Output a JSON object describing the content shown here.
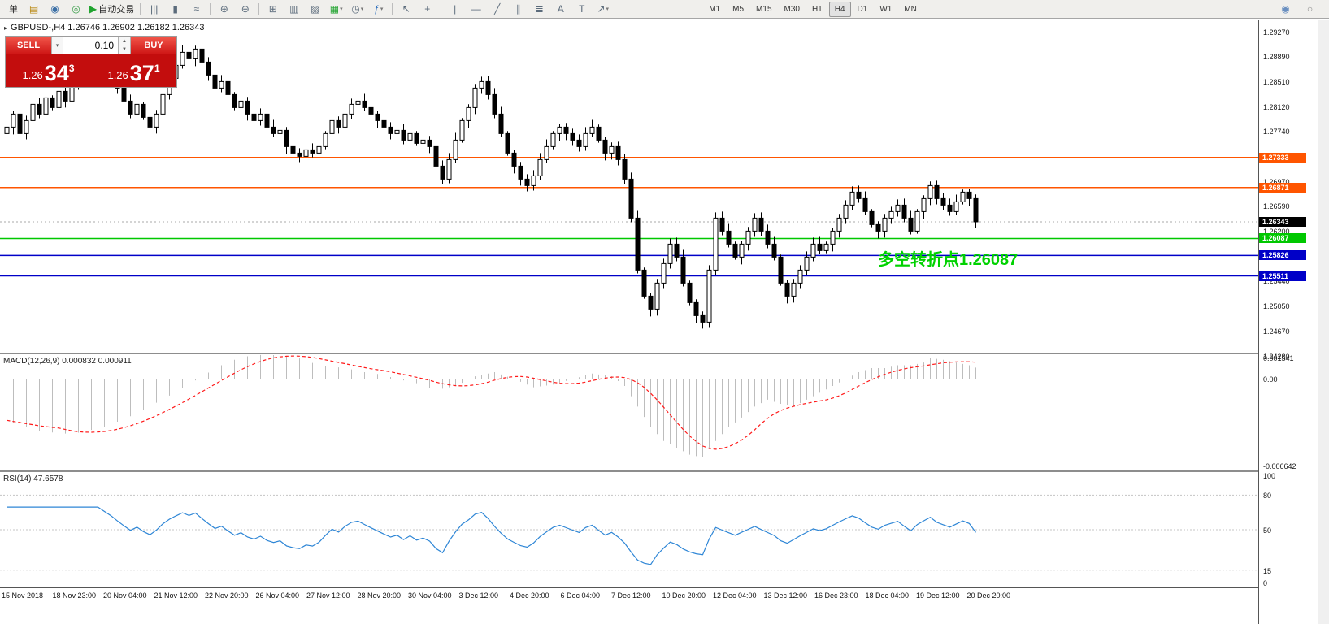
{
  "toolbar": {
    "items": [
      {
        "name": "order-button",
        "label": "单"
      },
      {
        "name": "chart-window-icon",
        "glyph": "▤",
        "color": "#b8860b"
      },
      {
        "name": "market-watch-icon",
        "glyph": "◉",
        "color": "#3a6ea5"
      },
      {
        "name": "navigator-icon",
        "glyph": "◎",
        "color": "#3a9e4a"
      },
      {
        "name": "autotrade-button",
        "label": "自动交易",
        "glyph": "▶",
        "color": "#1fa32e"
      },
      {
        "type": "sep"
      },
      {
        "name": "bar-chart-type-icon",
        "glyph": "|||"
      },
      {
        "name": "candlestick-chart-type-icon",
        "glyph": "▮"
      },
      {
        "name": "line-chart-type-icon",
        "glyph": "≈"
      },
      {
        "type": "sep"
      },
      {
        "name": "zoom-in-icon",
        "glyph": "⊕"
      },
      {
        "name": "zoom-out-icon",
        "glyph": "⊖"
      },
      {
        "type": "sep"
      },
      {
        "name": "tile-windows-icon",
        "glyph": "⊞"
      },
      {
        "name": "auto-arrange-icon",
        "glyph": "▥"
      },
      {
        "name": "chart-shift-icon",
        "glyph": "▨"
      },
      {
        "name": "new-chart-button",
        "glyph": "▦",
        "dd": true,
        "color": "#1fa32e"
      },
      {
        "name": "periodicity-icon",
        "glyph": "◷",
        "dd": true
      },
      {
        "name": "indicators-icon",
        "glyph": "ƒ",
        "dd": true,
        "color": "#2e6fbd"
      },
      {
        "type": "sep"
      },
      {
        "name": "cursor-icon",
        "glyph": "↖"
      },
      {
        "name": "crosshair-icon",
        "glyph": "+"
      },
      {
        "type": "sep"
      },
      {
        "name": "vertical-line-tool-icon",
        "glyph": "|"
      },
      {
        "name": "horizontal-line-tool-icon",
        "glyph": "—"
      },
      {
        "name": "trendline-tool-icon",
        "glyph": "╱"
      },
      {
        "name": "channel-tool-icon",
        "glyph": "∥"
      },
      {
        "name": "fibonacci-tool-icon",
        "glyph": "≣"
      },
      {
        "name": "text-tool-icon",
        "glyph": "A"
      },
      {
        "name": "label-tool-icon",
        "glyph": "T"
      },
      {
        "name": "arrows-tool-icon",
        "glyph": "↗",
        "dd": true
      }
    ],
    "timeframes": [
      "M1",
      "M5",
      "M15",
      "M30",
      "H1",
      "H4",
      "D1",
      "W1",
      "MN"
    ],
    "active_timeframe": "H4",
    "right_items": [
      {
        "name": "community-icon",
        "glyph": "◉",
        "color": "#6a8fc0"
      },
      {
        "name": "search-icon",
        "glyph": "○",
        "color": "#888888"
      }
    ]
  },
  "chart": {
    "header": "GBPUSD-,H4 1.26746 1.26902 1.26182 1.26343",
    "symbol": "GBPUSD-",
    "timeframe": "H4",
    "collapse_glyph": "▸"
  },
  "trade_panel": {
    "sell_label": "SELL",
    "buy_label": "BUY",
    "volume": "0.10",
    "sell_price_main": "1.26",
    "sell_price_big": "34",
    "sell_price_pip": "3",
    "buy_price_main": "1.26",
    "buy_price_big": "37",
    "buy_price_pip": "1"
  },
  "annotation": {
    "text": "多空转折点1.26087",
    "color": "#00d200"
  },
  "chart_data": [
    {
      "type": "candlestick",
      "symbol": "GBPUSD-",
      "timeframe": "H4",
      "current_bar": {
        "open": 1.26746,
        "high": 1.26902,
        "low": 1.26182,
        "close": 1.26343
      },
      "price_axis": [
        "1.29270",
        "1.28890",
        "1.28510",
        "1.28120",
        "1.27740",
        "1.27360",
        "1.26970",
        "1.26590",
        "1.26200",
        "1.25820",
        "1.25440",
        "1.25050",
        "1.24670",
        "1.24280"
      ],
      "y_range": [
        1.2433,
        1.29455
      ],
      "first_open": 1.277,
      "closes": [
        1.278,
        1.28,
        1.277,
        1.279,
        1.2815,
        1.28,
        1.2825,
        1.281,
        1.2835,
        1.282,
        1.2845,
        1.286,
        1.288,
        1.287,
        1.289,
        1.2875,
        1.286,
        1.284,
        1.282,
        1.28,
        1.2815,
        1.2795,
        1.278,
        1.28,
        1.283,
        1.2855,
        1.2875,
        1.2895,
        1.2885,
        1.29,
        1.288,
        1.286,
        1.284,
        1.285,
        1.283,
        1.281,
        1.282,
        1.28,
        1.279,
        1.28,
        1.278,
        1.277,
        1.2775,
        1.275,
        1.274,
        1.2735,
        1.2745,
        1.274,
        1.275,
        1.277,
        1.279,
        1.278,
        1.28,
        1.2815,
        1.282,
        1.281,
        1.28,
        1.279,
        1.278,
        1.277,
        1.2775,
        1.276,
        1.277,
        1.2755,
        1.276,
        1.275,
        1.272,
        1.27,
        1.273,
        1.276,
        1.279,
        1.281,
        1.284,
        1.285,
        1.283,
        1.28,
        1.277,
        1.274,
        1.272,
        1.27,
        1.269,
        1.2705,
        1.273,
        1.275,
        1.277,
        1.278,
        1.277,
        1.276,
        1.275,
        1.277,
        1.278,
        1.276,
        1.274,
        1.275,
        1.273,
        1.27,
        1.264,
        1.256,
        1.252,
        1.25,
        1.254,
        1.257,
        1.26,
        1.258,
        1.254,
        1.251,
        1.249,
        1.248,
        1.256,
        1.264,
        1.262,
        1.26,
        1.258,
        1.26,
        1.262,
        1.264,
        1.262,
        1.26,
        1.258,
        1.254,
        1.252,
        1.254,
        1.256,
        1.258,
        1.26,
        1.259,
        1.26,
        1.262,
        1.264,
        1.266,
        1.268,
        1.267,
        1.265,
        1.263,
        1.262,
        1.264,
        1.265,
        1.266,
        1.264,
        1.262,
        1.265,
        1.267,
        1.269,
        1.267,
        1.266,
        1.265,
        1.2665,
        1.268,
        1.267,
        1.26343
      ],
      "levels": [
        {
          "price": 1.27333,
          "color": "#ff5500",
          "label": "1.27333"
        },
        {
          "price": 1.26871,
          "color": "#ff5500",
          "label": "1.26871"
        },
        {
          "price": 1.26087,
          "color": "#00c800",
          "label": "1.26087"
        },
        {
          "price": 1.25826,
          "color": "#0000c8",
          "label": "1.25826"
        },
        {
          "price": 1.25511,
          "color": "#0000c8",
          "label": "1.25511"
        }
      ],
      "current_price": {
        "value": 1.26343,
        "label": "1.26343"
      }
    },
    {
      "type": "bar",
      "name": "MACD",
      "title": "MACD(12,26,9) 0.000832 0.000911",
      "axis_labels": [
        "0.001541",
        "0.00",
        "-0.006642"
      ],
      "y_range": [
        -0.006642,
        0.0018
      ],
      "scale": 0.0001,
      "signal_period": 9,
      "hist": [
        -30,
        -31.6,
        -33.2,
        -34.8,
        -36.4,
        -38,
        -38.4,
        -38.8,
        -39.2,
        -39.6,
        -40,
        -39,
        -38,
        -37,
        -36,
        -35,
        -33,
        -31,
        -29,
        -27,
        -25,
        -22.4,
        -19.8,
        -17.2,
        -14.6,
        -12,
        -9.3,
        -6.7,
        -4,
        -1,
        2,
        4.7,
        7.3,
        10,
        12,
        14,
        16,
        16.5,
        17,
        17.5,
        18,
        17.4,
        16.8,
        16.2,
        15.6,
        15,
        13.3,
        11.7,
        10,
        9.5,
        9,
        8.5,
        8,
        7,
        6,
        5,
        4.3,
        3.7,
        3,
        1.5,
        0,
        -1,
        -2,
        -3,
        -4.7,
        -6.3,
        -8,
        -7,
        -6,
        -5,
        -2.7,
        -0.3,
        2,
        3,
        4,
        5,
        3.3,
        1.7,
        0,
        -2,
        -4,
        -6,
        -5.3,
        -4.7,
        -4,
        -2.7,
        -1.3,
        0,
        1.3,
        2.7,
        4,
        3.3,
        2.7,
        2,
        -1.5,
        -5,
        -12.5,
        -20,
        -27.5,
        -35,
        -40,
        -45,
        -47.5,
        -50,
        -52.5,
        -55,
        -56,
        -57,
        -51,
        -45,
        -40,
        -35,
        -31.5,
        -28,
        -24,
        -20,
        -17.5,
        -15,
        -16.5,
        -18,
        -19,
        -20,
        -17.5,
        -15,
        -12.5,
        -10,
        -7.5,
        -5,
        -2.5,
        0,
        2.5,
        5,
        6.5,
        8,
        8,
        8,
        9,
        10,
        10,
        10,
        11,
        12,
        15.4,
        14.7,
        14,
        13,
        12,
        11,
        10,
        8.3
      ]
    },
    {
      "type": "line",
      "name": "RSI",
      "title": "RSI(14) 47.6578",
      "axis_labels": [
        "100",
        "80",
        "50",
        "15",
        "0"
      ],
      "levels": [
        80,
        50,
        15
      ],
      "period": 14,
      "last": 47.6578,
      "y_range": [
        0,
        100
      ]
    }
  ],
  "time_axis": [
    "15 Nov 2018",
    "18 Nov 23:00",
    "20 Nov 04:00",
    "21 Nov 12:00",
    "22 Nov 20:00",
    "26 Nov 04:00",
    "27 Nov 12:00",
    "28 Nov 20:00",
    "30 Nov 04:00",
    "3 Dec 12:00",
    "4 Dec 20:00",
    "6 Dec 04:00",
    "7 Dec 12:00",
    "10 Dec 20:00",
    "12 Dec 04:00",
    "13 Dec 12:00",
    "16 Dec 23:00",
    "18 Dec 04:00",
    "19 Dec 12:00",
    "20 Dec 20:00"
  ]
}
